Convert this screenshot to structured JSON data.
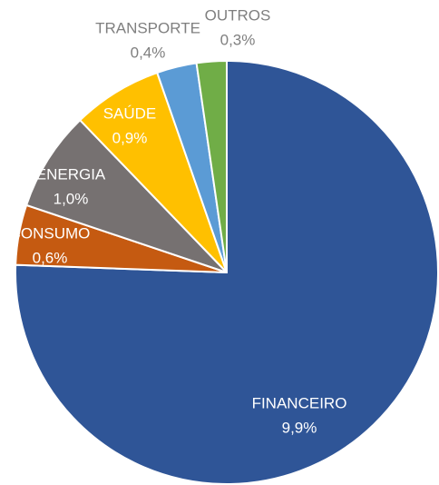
{
  "chart_data": {
    "type": "pie",
    "categories": [
      "FINANCEIRO",
      "CONSUMO",
      "ENERGIA",
      "SAÚDE",
      "TRANSPORTE",
      "OUTROS"
    ],
    "values": [
      9.9,
      0.6,
      1.0,
      0.9,
      0.4,
      0.3
    ],
    "value_labels": [
      "9,9%",
      "0,6%",
      "1,0%",
      "0,9%",
      "0,4%",
      "0,3%"
    ],
    "colors": [
      "#2f5597",
      "#c55a11",
      "#767171",
      "#ffc000",
      "#5b9bd5",
      "#70ad47"
    ]
  }
}
